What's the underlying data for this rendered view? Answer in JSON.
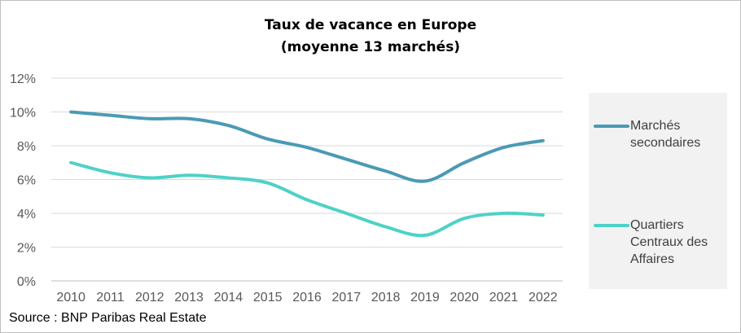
{
  "chart_data": {
    "type": "line",
    "title": "Taux de vacance en Europe",
    "subtitle": "(moyenne 13 marchés)",
    "x": [
      "2010",
      "2011",
      "2012",
      "2013",
      "2014",
      "2015",
      "2016",
      "2017",
      "2018",
      "2019",
      "2020",
      "2021",
      "2022"
    ],
    "ylim": [
      0,
      12
    ],
    "yticks": [
      "0%",
      "2%",
      "4%",
      "6%",
      "8%",
      "10%",
      "12%"
    ],
    "ytick_values": [
      0,
      2,
      4,
      6,
      8,
      10,
      12
    ],
    "grid": true,
    "legend_position": "right",
    "series": [
      {
        "name": "Marchés secondaires",
        "color": "#4a9ab5",
        "values": [
          10.0,
          9.8,
          9.6,
          9.6,
          9.2,
          8.4,
          7.9,
          7.2,
          6.5,
          5.9,
          7.0,
          7.9,
          8.3
        ]
      },
      {
        "name": "Quartiers Centraux des Affaires",
        "color": "#4fd1c7",
        "values": [
          7.0,
          6.4,
          6.1,
          6.25,
          6.1,
          5.8,
          4.8,
          4.0,
          3.2,
          2.7,
          3.7,
          4.0,
          3.9
        ]
      }
    ]
  },
  "legend": {
    "labels": [
      "Marchés secondaires",
      "Quartiers Centraux des Affaires"
    ],
    "colors": [
      "#4a9ab5",
      "#4fd1c7"
    ]
  },
  "source": "Source : BNP Paribas Real Estate"
}
